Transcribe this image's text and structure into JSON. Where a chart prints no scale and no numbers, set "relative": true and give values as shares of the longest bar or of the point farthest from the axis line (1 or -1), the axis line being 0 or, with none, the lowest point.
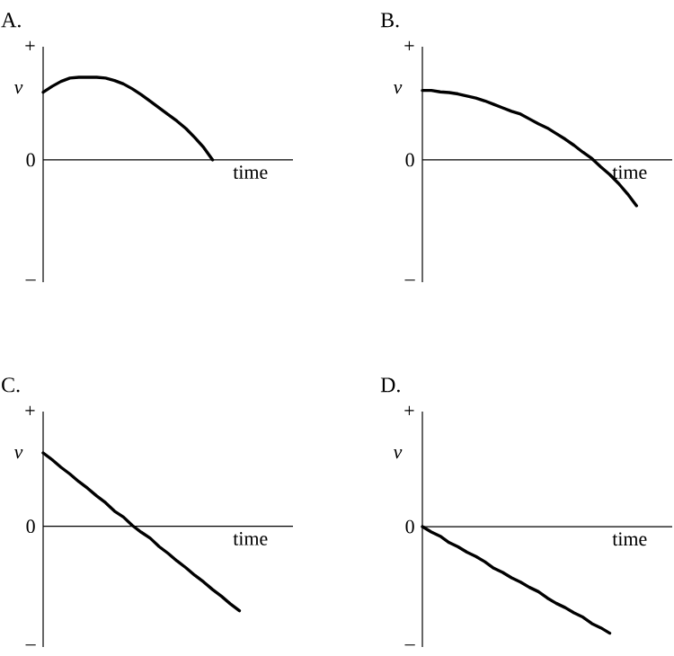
{
  "chart_data": [
    {
      "type": "line",
      "title": "A.",
      "xlabel": "time",
      "ylabel": "v",
      "relative": true,
      "annotations": [
        "+",
        "0",
        "–"
      ],
      "categories": [
        null,
        null,
        null,
        null,
        null,
        null,
        null,
        null,
        null,
        null,
        null,
        null,
        null,
        null,
        null,
        null,
        null,
        null,
        null,
        null,
        null,
        null,
        null,
        null,
        null,
        null,
        null,
        null,
        null
      ],
      "values": [
        0.82,
        0.89,
        0.95,
        0.99,
        1,
        1,
        1,
        0.99,
        0.96,
        0.92,
        0.86,
        0.79,
        0.71,
        0.63,
        0.55,
        0.47,
        0.38,
        0.27,
        0.15,
        0,
        null,
        null,
        null,
        null,
        null,
        null,
        null,
        null,
        null
      ],
      "color": "#000000"
    },
    {
      "type": "line",
      "title": "B.",
      "xlabel": "time",
      "ylabel": "v",
      "relative": true,
      "annotations": [
        "+",
        "0",
        "–"
      ],
      "categories": [
        null,
        null,
        null,
        null,
        null,
        null,
        null,
        null,
        null,
        null,
        null,
        null,
        null,
        null,
        null,
        null,
        null,
        null,
        null,
        null,
        null,
        null,
        null,
        null,
        null,
        null,
        null,
        null,
        null
      ],
      "values": [
        1,
        1,
        0.98,
        0.97,
        0.95,
        0.92,
        0.89,
        0.85,
        0.8,
        0.75,
        0.7,
        0.66,
        0.59,
        0.52,
        0.46,
        0.38,
        0.3,
        0.21,
        0.11,
        0.02,
        -0.1,
        -0.21,
        -0.34,
        -0.49,
        -0.66,
        null,
        null,
        null,
        null
      ],
      "color": "#000000"
    },
    {
      "type": "line",
      "title": "C.",
      "xlabel": "time",
      "ylabel": "v",
      "relative": true,
      "annotations": [
        "+",
        "0",
        "–"
      ],
      "categories": [
        null,
        null,
        null,
        null,
        null,
        null,
        null,
        null,
        null,
        null,
        null,
        null,
        null,
        null,
        null,
        null,
        null,
        null,
        null,
        null,
        null,
        null,
        null,
        null,
        null,
        null,
        null,
        null,
        null
      ],
      "values": [
        0.87,
        0.79,
        0.7,
        0.62,
        0.53,
        0.45,
        0.36,
        0.28,
        0.18,
        0.11,
        0.01,
        -0.07,
        -0.14,
        -0.24,
        -0.32,
        -0.41,
        -0.49,
        -0.58,
        -0.66,
        -0.75,
        -0.83,
        -0.92,
        -1,
        null,
        null,
        null,
        null,
        null,
        null
      ],
      "color": "#000000"
    },
    {
      "type": "line",
      "title": "D.",
      "xlabel": "time",
      "ylabel": "v",
      "relative": true,
      "annotations": [
        "+",
        "0",
        "–"
      ],
      "categories": [
        null,
        null,
        null,
        null,
        null,
        null,
        null,
        null,
        null,
        null,
        null,
        null,
        null,
        null,
        null,
        null,
        null,
        null,
        null,
        null,
        null,
        null,
        null,
        null,
        null,
        null,
        null,
        null,
        null
      ],
      "values": [
        0,
        -0.05,
        -0.09,
        -0.15,
        -0.19,
        -0.24,
        -0.28,
        -0.33,
        -0.39,
        -0.43,
        -0.48,
        -0.52,
        -0.57,
        -0.61,
        -0.67,
        -0.72,
        -0.76,
        -0.81,
        -0.85,
        -0.91,
        -0.95,
        -1,
        null,
        null,
        null,
        null,
        null,
        null,
        null
      ],
      "color": "#000000"
    }
  ]
}
